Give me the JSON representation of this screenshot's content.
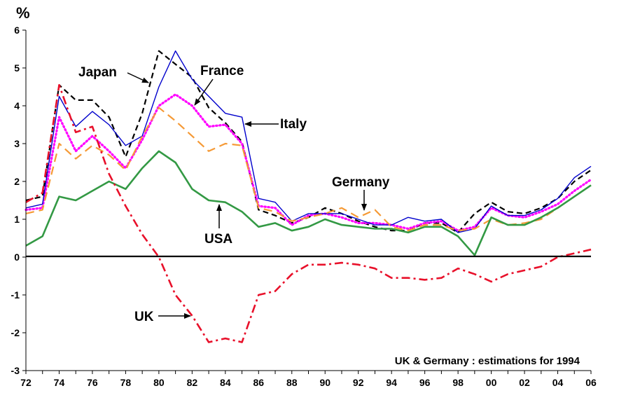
{
  "chart_data": {
    "type": "line",
    "y_unit_label": "%",
    "note": "UK & Germany : estimations for 1994",
    "xlim": [
      1972,
      2006
    ],
    "ylim": [
      -3,
      6
    ],
    "x_tick_labels": [
      "72",
      "74",
      "76",
      "78",
      "80",
      "82",
      "84",
      "86",
      "88",
      "90",
      "92",
      "94",
      "96",
      "98",
      "00",
      "02",
      "04",
      "06"
    ],
    "y_tick_labels": [
      "-3",
      "-2",
      "-1",
      "0",
      "1",
      "2",
      "3",
      "4",
      "5",
      "6"
    ],
    "grid": false,
    "x": [
      1972,
      1973,
      1974,
      1975,
      1976,
      1977,
      1978,
      1979,
      1980,
      1981,
      1982,
      1983,
      1984,
      1985,
      1986,
      1987,
      1988,
      1989,
      1990,
      1991,
      1992,
      1993,
      1994,
      1995,
      1996,
      1997,
      1998,
      1999,
      2000,
      2001,
      2002,
      2003,
      2004,
      2005,
      2006
    ],
    "series": [
      {
        "name": "Japan",
        "color": "#000000",
        "style": "dashed",
        "width": 2.2,
        "values": [
          1.5,
          1.6,
          4.55,
          4.15,
          4.15,
          3.7,
          2.65,
          3.8,
          5.45,
          5.1,
          4.75,
          3.95,
          3.55,
          3.05,
          1.25,
          1.1,
          0.9,
          1.05,
          1.3,
          1.15,
          0.95,
          0.8,
          0.7,
          0.7,
          0.9,
          0.9,
          0.65,
          1.15,
          1.45,
          1.2,
          1.15,
          1.3,
          1.55,
          2.0,
          2.3
        ]
      },
      {
        "name": "France",
        "color": "#ff00ff",
        "style": "dotted",
        "width": 3.2,
        "values": [
          1.25,
          1.3,
          3.7,
          2.8,
          3.2,
          2.8,
          2.35,
          3.1,
          4.0,
          4.3,
          4.0,
          3.45,
          3.5,
          3.0,
          1.35,
          1.3,
          0.85,
          1.1,
          1.15,
          1.05,
          0.9,
          0.9,
          0.85,
          0.75,
          0.9,
          0.95,
          0.7,
          0.8,
          1.3,
          1.1,
          1.05,
          1.2,
          1.4,
          1.75,
          2.05
        ]
      },
      {
        "name": "Italy",
        "color": "#0000cc",
        "style": "solid",
        "width": 1.4,
        "values": [
          1.3,
          1.4,
          4.25,
          3.45,
          3.85,
          3.5,
          2.95,
          3.2,
          4.5,
          5.45,
          4.7,
          4.25,
          3.8,
          3.7,
          1.55,
          1.45,
          0.95,
          1.15,
          1.15,
          1.15,
          1.0,
          0.85,
          0.85,
          1.05,
          0.95,
          1.0,
          0.65,
          0.75,
          1.35,
          1.1,
          1.1,
          1.25,
          1.55,
          2.1,
          2.4
        ]
      },
      {
        "name": "Germany",
        "color": "#f59a36",
        "style": "longdash",
        "width": 2.2,
        "values": [
          1.15,
          1.25,
          3.0,
          2.6,
          2.95,
          2.7,
          2.3,
          3.2,
          3.95,
          3.6,
          3.2,
          2.8,
          3.0,
          2.95,
          1.3,
          1.2,
          0.95,
          1.05,
          1.15,
          1.3,
          1.05,
          1.25,
          0.8,
          0.7,
          0.85,
          0.85,
          0.7,
          0.75,
          1.0,
          0.85,
          0.9,
          1.0,
          1.3,
          1.6,
          1.9
        ]
      },
      {
        "name": "USA",
        "color": "#339944",
        "style": "solid",
        "width": 2.6,
        "values": [
          0.3,
          0.55,
          1.6,
          1.5,
          1.75,
          2.0,
          1.8,
          2.35,
          2.8,
          2.5,
          1.8,
          1.5,
          1.45,
          1.2,
          0.8,
          0.9,
          0.7,
          0.8,
          1.0,
          0.85,
          0.8,
          0.75,
          0.75,
          0.65,
          0.8,
          0.8,
          0.55,
          0.05,
          1.05,
          0.85,
          0.85,
          1.05,
          1.3,
          1.6,
          1.9
        ]
      },
      {
        "name": "UK",
        "color": "#e8102a",
        "style": "dashdot",
        "width": 2.6,
        "values": [
          1.45,
          1.7,
          4.55,
          3.3,
          3.45,
          2.2,
          1.35,
          0.6,
          0.0,
          -1.0,
          -1.55,
          -2.25,
          -2.15,
          -2.25,
          -1.0,
          -0.9,
          -0.45,
          -0.2,
          -0.2,
          -0.15,
          -0.2,
          -0.3,
          -0.55,
          -0.55,
          -0.6,
          -0.55,
          -0.3,
          -0.45,
          -0.65,
          -0.45,
          -0.35,
          -0.25,
          0.0,
          0.1,
          0.2
        ]
      }
    ]
  },
  "annotations": {
    "japan": "Japan",
    "france": "France",
    "italy": "Italy",
    "germany": "Germany",
    "usa": "USA",
    "uk": "UK"
  }
}
